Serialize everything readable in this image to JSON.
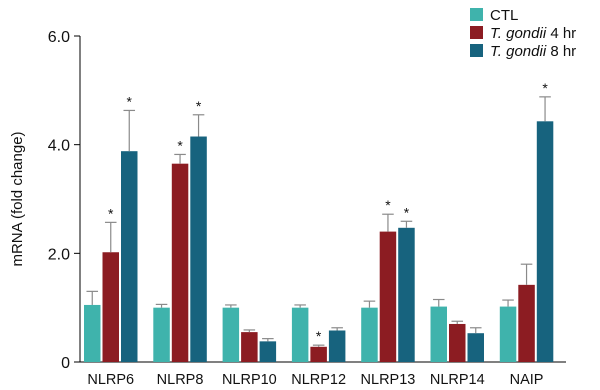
{
  "chart_data": {
    "type": "bar",
    "xlabel": "",
    "ylabel": "mRNA (fold change)",
    "ylim": [
      0,
      6.0
    ],
    "yticks": [
      "0",
      "2.0",
      "4.0",
      "6.0"
    ],
    "ytick_values": [
      0,
      2.0,
      4.0,
      6.0
    ],
    "grid": false,
    "legend_position": "top-right",
    "categories": [
      "NLRP6",
      "NLRP8",
      "NLRP10",
      "NLRP12",
      "NLRP13",
      "NLRP14",
      "NAIP"
    ],
    "series": [
      {
        "name": "CTL",
        "name_italic": "",
        "name_suffix": "CTL",
        "color": "#3fb3ac",
        "values": [
          1.05,
          1.0,
          1.0,
          1.0,
          1.0,
          1.02,
          1.02
        ],
        "errors": [
          0.25,
          0.06,
          0.05,
          0.05,
          0.12,
          0.13,
          0.12
        ],
        "significant": [
          false,
          false,
          false,
          false,
          false,
          false,
          false
        ]
      },
      {
        "name": "T. gondii 4 hr",
        "name_italic": "T. gondii",
        "name_suffix": " 4 hr",
        "color": "#8c1c22",
        "values": [
          2.02,
          3.65,
          0.55,
          0.28,
          2.4,
          0.7,
          1.42
        ],
        "errors": [
          0.55,
          0.17,
          0.04,
          0.03,
          0.32,
          0.05,
          0.38
        ],
        "significant": [
          true,
          true,
          false,
          true,
          true,
          false,
          false
        ]
      },
      {
        "name": "T. gondii 8 hr",
        "name_italic": "T. gondii",
        "name_suffix": " 8 hr",
        "color": "#17637e",
        "values": [
          3.88,
          4.15,
          0.38,
          0.58,
          2.47,
          0.53,
          4.43
        ],
        "errors": [
          0.75,
          0.4,
          0.05,
          0.05,
          0.12,
          0.1,
          0.45
        ],
        "significant": [
          true,
          true,
          false,
          false,
          true,
          false,
          true
        ]
      }
    ],
    "significance_marker": "*"
  }
}
